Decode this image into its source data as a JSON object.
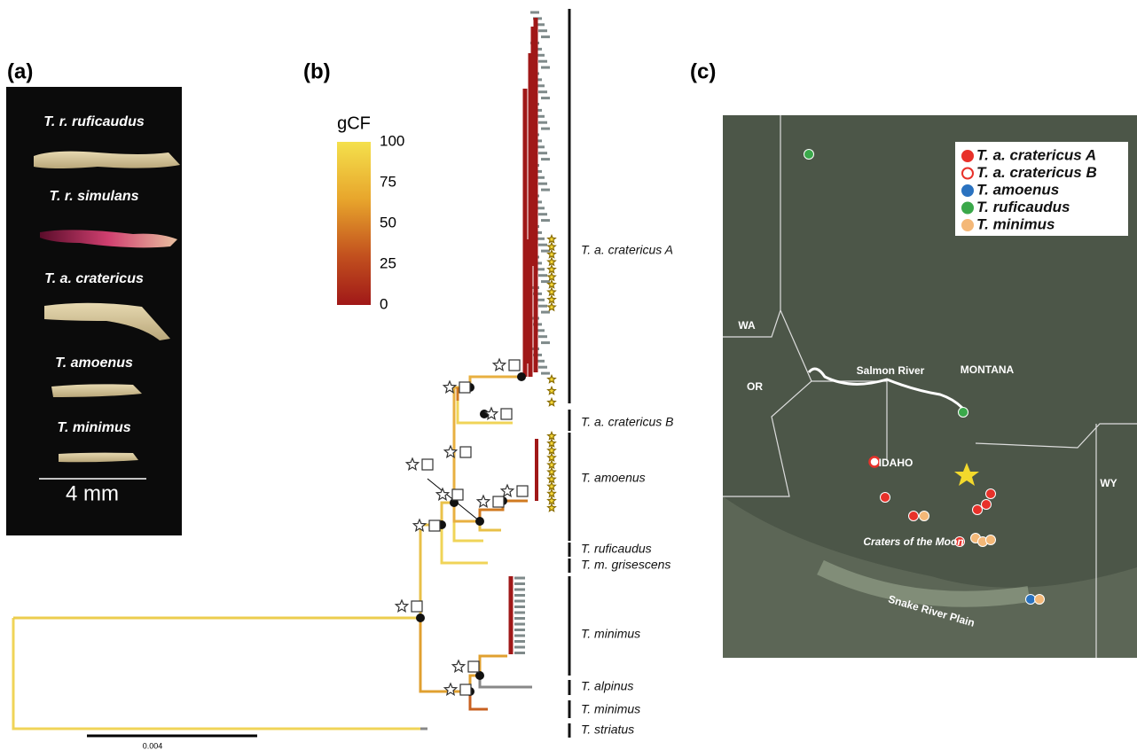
{
  "panel_labels": [
    "(a)",
    "(b)",
    "(c)"
  ],
  "panel_a": {
    "species": [
      "T. r. ruficaudus",
      "T. r. simulans",
      "T. a. cratericus",
      "T. amoenus",
      "T. minimus"
    ],
    "scale": "4 mm"
  },
  "panel_b": {
    "legend": {
      "title": "gCF",
      "ticks": [
        100,
        75,
        50,
        25,
        0
      ]
    },
    "clades": [
      "T. a. cratericus A",
      "T. a. cratericus B",
      "T. amoenus",
      "T. ruficaudus",
      "T. m. grisescens",
      "T. minimus",
      "T. alpinus",
      "T. minimus",
      "T. striatus"
    ],
    "scale": "0.004"
  },
  "panel_c": {
    "legend": [
      {
        "label": "T. a. cratericus A",
        "color": "#e8312a"
      },
      {
        "label": "T. a. cratericus B",
        "color": "#e8312a",
        "hollow": true
      },
      {
        "label": "T. amoenus",
        "color": "#2a72c0"
      },
      {
        "label": "T. ruficaudus",
        "color": "#3aa84a"
      },
      {
        "label": "T. minimus",
        "color": "#f4b878"
      }
    ],
    "places": [
      "WA",
      "OR",
      "IDAHO",
      "MONTANA",
      "WY",
      "Salmon River",
      "Snake River Plain",
      "Craters of the Moon"
    ]
  }
}
